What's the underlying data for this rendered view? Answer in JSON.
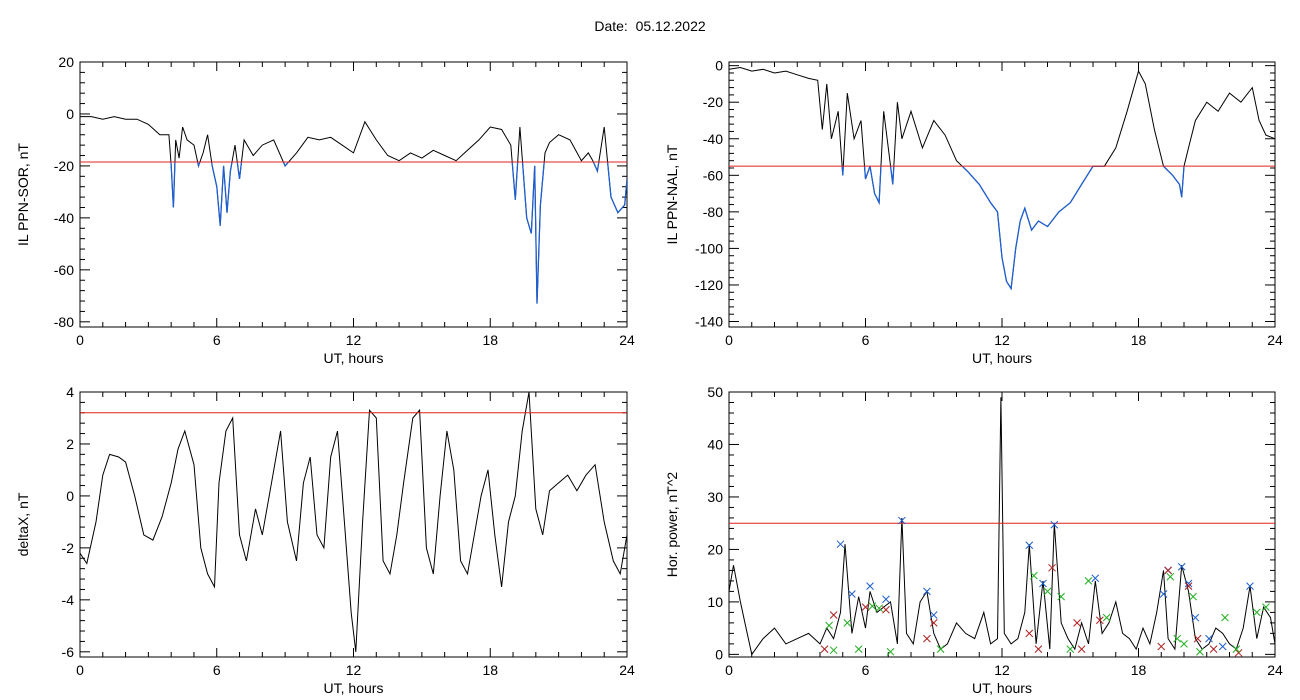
{
  "title": "Date:  05.12.2022",
  "chart_data": [
    {
      "type": "line",
      "ylabel": "IL PPN-SOR, nT",
      "xlabel": "UT, hours",
      "xlim": [
        0,
        24
      ],
      "ylim": [
        -82,
        20
      ],
      "xticks": [
        0,
        6,
        12,
        18,
        24
      ],
      "yticks": [
        20,
        0,
        -20,
        -40,
        -60,
        -80
      ],
      "threshold": -18.5,
      "colors": {
        "line": "#000000",
        "below": "#1f5fd0",
        "threshold": "#e02020"
      },
      "series": [
        {
          "x": [
            0,
            0.5,
            1,
            1.5,
            2,
            2.5,
            3,
            3.5,
            3.9,
            4.0,
            4.1,
            4.2,
            4.35,
            4.5,
            4.7,
            5.0,
            5.2,
            5.4,
            5.6,
            5.8,
            6.0,
            6.15,
            6.3,
            6.45,
            6.6,
            6.8,
            7.0,
            7.2,
            7.6,
            8,
            8.5,
            9,
            9.5,
            10,
            10.5,
            11,
            11.5,
            12,
            12.5,
            13,
            13.5,
            14,
            14.5,
            15,
            15.5,
            16,
            16.5,
            17,
            17.5,
            18,
            18.5,
            18.9,
            19.1,
            19.3,
            19.6,
            19.8,
            19.95,
            20.05,
            20.2,
            20.4,
            20.6,
            21,
            21.5,
            22,
            22.3,
            22.5,
            22.7,
            23,
            23.3,
            23.6,
            23.9,
            24
          ],
          "y": [
            -1,
            -1,
            -2,
            -1,
            -2,
            -2,
            -4,
            -8,
            -8,
            -20,
            -36,
            -10,
            -17,
            -5,
            -10,
            -12,
            -20,
            -15,
            -8,
            -20,
            -28,
            -43,
            -20,
            -38,
            -22,
            -12,
            -25,
            -10,
            -16,
            -12,
            -10,
            -20,
            -15,
            -9,
            -10,
            -9,
            -12,
            -15,
            -3,
            -10,
            -16,
            -18,
            -15,
            -17,
            -14,
            -16,
            -18,
            -14,
            -10,
            -5,
            -6,
            -12,
            -33,
            -5,
            -40,
            -46,
            -20,
            -73,
            -35,
            -15,
            -11,
            -8,
            -10,
            -18,
            -15,
            -18,
            -22,
            -5,
            -32,
            -38,
            -35,
            -25
          ]
        }
      ]
    },
    {
      "type": "line",
      "ylabel": "IL PPN-NAL, nT",
      "xlabel": "UT, hours",
      "xlim": [
        0,
        24
      ],
      "ylim": [
        -143,
        2
      ],
      "xticks": [
        0,
        6,
        12,
        18,
        24
      ],
      "yticks": [
        0,
        -20,
        -40,
        -60,
        -80,
        -100,
        -120,
        -140
      ],
      "threshold": -55,
      "colors": {
        "line": "#000000",
        "below": "#1f5fd0",
        "threshold": "#e02020"
      },
      "series": [
        {
          "x": [
            0,
            0.5,
            1,
            1.5,
            2,
            2.5,
            3,
            3.5,
            3.9,
            4.1,
            4.3,
            4.5,
            4.8,
            5.0,
            5.2,
            5.5,
            5.8,
            6.0,
            6.2,
            6.4,
            6.6,
            6.8,
            7.0,
            7.2,
            7.4,
            7.6,
            8,
            8.5,
            9,
            9.5,
            10,
            10.5,
            11,
            11.5,
            11.8,
            12.0,
            12.2,
            12.4,
            12.6,
            12.8,
            13,
            13.3,
            13.6,
            14,
            14.5,
            15,
            15.5,
            16,
            16.5,
            17,
            17.5,
            18,
            18.3,
            18.7,
            19.1,
            19.5,
            19.8,
            19.9,
            20.0,
            20.2,
            20.5,
            21,
            21.5,
            22,
            22.5,
            23,
            23.3,
            23.6,
            24
          ],
          "y": [
            -2,
            -1,
            -3,
            -2,
            -4,
            -3,
            -5,
            -7,
            -8,
            -35,
            -10,
            -40,
            -25,
            -60,
            -15,
            -40,
            -30,
            -62,
            -55,
            -70,
            -75,
            -25,
            -45,
            -65,
            -20,
            -40,
            -25,
            -45,
            -30,
            -38,
            -52,
            -58,
            -65,
            -75,
            -80,
            -105,
            -118,
            -122,
            -100,
            -85,
            -78,
            -90,
            -85,
            -88,
            -80,
            -75,
            -65,
            -55,
            -55,
            -45,
            -25,
            -3,
            -10,
            -35,
            -55,
            -60,
            -65,
            -72,
            -55,
            -45,
            -30,
            -20,
            -25,
            -15,
            -20,
            -12,
            -30,
            -38,
            -40
          ]
        }
      ]
    },
    {
      "type": "line",
      "ylabel": "deltaX, nT",
      "xlabel": "UT, hours",
      "xlim": [
        0,
        24
      ],
      "ylim": [
        -6.2,
        4.0
      ],
      "xticks": [
        0,
        6,
        12,
        18,
        24
      ],
      "yticks": [
        4,
        2,
        0,
        -2,
        -4,
        -6
      ],
      "threshold": 3.2,
      "colors": {
        "line": "#000000",
        "threshold": "#e02020"
      },
      "series": [
        {
          "x": [
            0,
            0.3,
            0.7,
            1,
            1.3,
            1.7,
            2,
            2.4,
            2.8,
            3.2,
            3.6,
            4,
            4.3,
            4.6,
            5,
            5.3,
            5.6,
            5.9,
            6.1,
            6.4,
            6.7,
            7,
            7.3,
            7.7,
            8,
            8.4,
            8.8,
            9.1,
            9.5,
            9.8,
            10.1,
            10.4,
            10.7,
            11,
            11.3,
            11.6,
            11.9,
            12.1,
            12.4,
            12.7,
            13,
            13.3,
            13.6,
            13.9,
            14.2,
            14.6,
            14.9,
            15.2,
            15.5,
            15.8,
            16.1,
            16.4,
            16.7,
            17,
            17.3,
            17.6,
            17.9,
            18.2,
            18.5,
            18.8,
            19.1,
            19.4,
            19.7,
            20,
            20.3,
            20.6,
            21,
            21.4,
            21.8,
            22.2,
            22.6,
            23,
            23.4,
            23.7,
            24
          ],
          "y": [
            -2.2,
            -2.6,
            -1,
            0.8,
            1.6,
            1.5,
            1.3,
            0,
            -1.5,
            -1.7,
            -0.8,
            0.5,
            1.8,
            2.5,
            1.2,
            -2,
            -3,
            -3.5,
            0.5,
            2.5,
            3,
            -1.5,
            -2.5,
            -0.5,
            -1.5,
            0.5,
            2.5,
            -1,
            -2.5,
            0.5,
            1.5,
            -1.5,
            -2,
            1.5,
            2.5,
            -1,
            -4.5,
            -6,
            -1,
            3.3,
            3,
            -2.5,
            -3,
            -1.5,
            0.5,
            3,
            3.3,
            -2,
            -3,
            0,
            2.5,
            1,
            -2.5,
            -3,
            -1.5,
            0,
            1,
            -1.5,
            -3.5,
            -1,
            0,
            2.5,
            4,
            -0.5,
            -1.5,
            0.2,
            0.5,
            0.8,
            0.2,
            0.8,
            1.2,
            -1,
            -2.5,
            -3,
            -1.5
          ]
        }
      ]
    },
    {
      "type": "line",
      "ylabel": "Hor. power, nT^2",
      "xlabel": "UT, hours",
      "xlim": [
        0,
        24
      ],
      "ylim": [
        -0.5,
        50
      ],
      "xticks": [
        0,
        6,
        12,
        18,
        24
      ],
      "yticks": [
        0,
        10,
        20,
        30,
        40,
        50
      ],
      "threshold": 25,
      "colors": {
        "line": "#000000",
        "threshold": "#e02020",
        "blue": "#1f5fd0",
        "red": "#b02020",
        "green": "#20b020"
      },
      "series": [
        {
          "x": [
            0,
            0.2,
            0.5,
            0.8,
            1,
            1.5,
            2,
            2.5,
            3,
            3.5,
            4,
            4.3,
            4.6,
            4.9,
            5.1,
            5.4,
            5.7,
            6,
            6.2,
            6.5,
            6.8,
            7.1,
            7.4,
            7.6,
            7.8,
            8.1,
            8.4,
            8.7,
            9,
            9.3,
            9.6,
            10,
            10.4,
            10.8,
            11.2,
            11.5,
            11.8,
            11.95,
            12.1,
            12.4,
            12.7,
            13,
            13.2,
            13.5,
            13.8,
            14.1,
            14.3,
            14.6,
            14.9,
            15.2,
            15.5,
            15.8,
            16.1,
            16.4,
            16.7,
            17,
            17.3,
            17.6,
            17.9,
            18.2,
            18.5,
            18.8,
            19.1,
            19.3,
            19.6,
            19.9,
            20.2,
            20.5,
            20.8,
            21.1,
            21.4,
            21.7,
            22,
            22.3,
            22.6,
            22.9,
            23.2,
            23.5,
            23.8,
            24
          ],
          "y": [
            12,
            17,
            10,
            4,
            0,
            3,
            5,
            2,
            3,
            4,
            2,
            5,
            3,
            8,
            21,
            4,
            11,
            5,
            12,
            8,
            9,
            10,
            2,
            26,
            4,
            2,
            10,
            12,
            4,
            1,
            2,
            6,
            4,
            3,
            8,
            2,
            3,
            49,
            4,
            2,
            3,
            8,
            21,
            2,
            14,
            1,
            25,
            6,
            3,
            1,
            6,
            2,
            14,
            4,
            6,
            10,
            4,
            3,
            1,
            5,
            2,
            8,
            16,
            3,
            1,
            17,
            12,
            3,
            1,
            2,
            5,
            4,
            2,
            1,
            5,
            13,
            3,
            9,
            7,
            2
          ]
        }
      ],
      "markers": {
        "blue": [
          [
            4.9,
            21
          ],
          [
            5.4,
            11.5
          ],
          [
            6.2,
            13
          ],
          [
            6.9,
            10.5
          ],
          [
            7.6,
            25.5
          ],
          [
            8.7,
            12
          ],
          [
            9.0,
            7.5
          ],
          [
            13.2,
            20.8
          ],
          [
            13.8,
            13.5
          ],
          [
            14.3,
            24.7
          ],
          [
            16.1,
            14.5
          ],
          [
            19.1,
            11.5
          ],
          [
            19.3,
            16
          ],
          [
            19.9,
            16.7
          ],
          [
            20.2,
            13.5
          ],
          [
            20.5,
            7
          ],
          [
            21.1,
            3
          ],
          [
            21.7,
            1.5
          ],
          [
            22.9,
            13
          ]
        ],
        "red": [
          [
            4.2,
            1
          ],
          [
            4.6,
            7.5
          ],
          [
            6.0,
            9
          ],
          [
            6.9,
            8.5
          ],
          [
            8.7,
            3
          ],
          [
            9.0,
            6
          ],
          [
            13.2,
            4
          ],
          [
            13.6,
            1
          ],
          [
            14.2,
            16.5
          ],
          [
            15.3,
            6
          ],
          [
            15.5,
            1
          ],
          [
            16.3,
            6.5
          ],
          [
            19.0,
            1.5
          ],
          [
            19.3,
            16
          ],
          [
            20.2,
            13
          ],
          [
            20.6,
            3
          ],
          [
            21.3,
            1
          ],
          [
            22.4,
            0.3
          ]
        ],
        "green": [
          [
            4.4,
            5.5
          ],
          [
            4.6,
            0.8
          ],
          [
            5.2,
            6
          ],
          [
            5.7,
            1
          ],
          [
            6.3,
            9.2
          ],
          [
            6.6,
            8.8
          ],
          [
            7.1,
            0.5
          ],
          [
            9.3,
            1
          ],
          [
            13.4,
            15
          ],
          [
            14.0,
            12
          ],
          [
            14.6,
            11
          ],
          [
            15.0,
            1
          ],
          [
            15.8,
            14
          ],
          [
            16.6,
            7
          ],
          [
            19.4,
            14.8
          ],
          [
            19.7,
            3
          ],
          [
            20.0,
            2
          ],
          [
            20.4,
            11
          ],
          [
            20.7,
            0.5
          ],
          [
            21.8,
            7
          ],
          [
            22.3,
            1
          ],
          [
            23.2,
            8
          ],
          [
            23.6,
            9
          ]
        ]
      }
    }
  ]
}
